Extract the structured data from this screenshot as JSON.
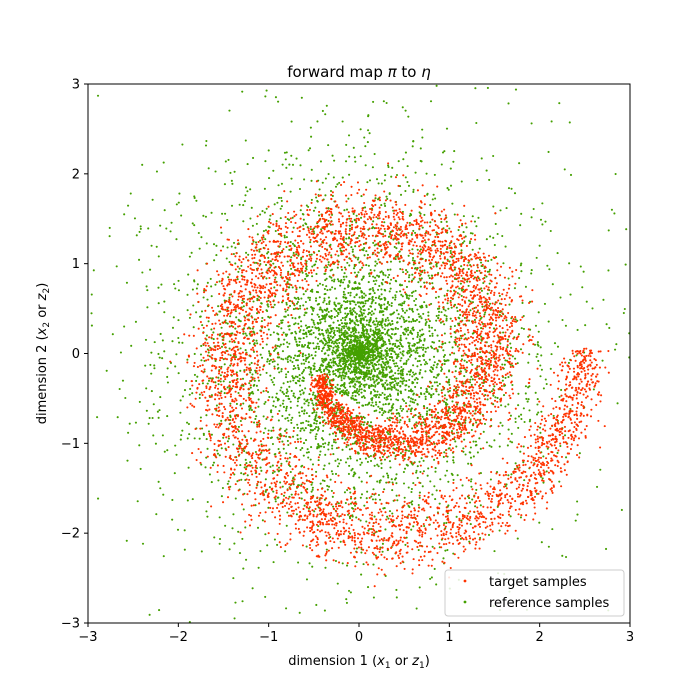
{
  "chart_data": {
    "type": "scatter",
    "title": "forward map π to η",
    "title_parts": {
      "pre": "forward map ",
      "pi": "π",
      "mid": " to ",
      "eta": "η"
    },
    "xlabel": "dimension 1 (x₁ or z₁)",
    "ylabel": "dimension 2 (x₂ or z₂)",
    "xlabel_parts": {
      "pre": "dimension 1 (",
      "v1": "x",
      "s1": "1",
      "or": " or ",
      "v2": "z",
      "s2": "1",
      "post": ")"
    },
    "ylabel_parts": {
      "pre": "dimension 2 (",
      "v1": "x",
      "s1": "2",
      "or": " or ",
      "v2": "z",
      "s2": "2",
      "post": ")"
    },
    "xlim": [
      -3,
      3
    ],
    "ylim": [
      -3,
      3
    ],
    "xticks": [
      -3,
      -2,
      -1,
      0,
      1,
      2,
      3
    ],
    "yticks": [
      -3,
      -2,
      -1,
      0,
      1,
      2,
      3
    ],
    "xtick_labels": [
      "−3",
      "−2",
      "−1",
      "0",
      "1",
      "2",
      "3"
    ],
    "ytick_labels": [
      "−3",
      "−2",
      "−1",
      "0",
      "1",
      "2",
      "3"
    ],
    "grid": false,
    "legend_position": "lower right",
    "series": [
      {
        "name": "target samples",
        "color": "#ff3300",
        "distribution": "spiral band: radius grows from about 0.8 to 2.4 over one and a half turns, from (0.2, -0.7) through (1.2, 0) to (0.2, 1.5), (-1.9, 0), (0, -2.3) and out to (2.7, -0.7)",
        "points": [
          [
            0.2,
            -0.72
          ],
          [
            0.55,
            -0.62
          ],
          [
            0.85,
            -0.4
          ],
          [
            1.05,
            -0.1
          ],
          [
            1.15,
            0.2
          ],
          [
            1.1,
            0.55
          ],
          [
            0.95,
            0.95
          ],
          [
            0.7,
            1.25
          ],
          [
            0.35,
            1.45
          ],
          [
            0.0,
            1.55
          ],
          [
            -0.4,
            1.5
          ],
          [
            -0.8,
            1.35
          ],
          [
            -1.15,
            1.1
          ],
          [
            -1.5,
            0.75
          ],
          [
            -1.75,
            0.35
          ],
          [
            -1.9,
            -0.1
          ],
          [
            -1.9,
            -0.6
          ],
          [
            -1.75,
            -1.1
          ],
          [
            -1.45,
            -1.6
          ],
          [
            -1.0,
            -2.0
          ],
          [
            -0.45,
            -2.25
          ],
          [
            0.1,
            -2.35
          ],
          [
            0.7,
            -2.3
          ],
          [
            1.3,
            -2.1
          ],
          [
            1.85,
            -1.8
          ],
          [
            2.3,
            -1.35
          ],
          [
            2.65,
            -0.75
          ],
          [
            -0.3,
            -0.3
          ],
          [
            0.0,
            -0.6
          ],
          [
            0.4,
            -0.7
          ]
        ]
      },
      {
        "name": "reference samples",
        "color": "#44a000",
        "distribution": "diffuse cloud centred near the origin, most points within a radius of about 2.5, with a sparse white streak running from (-0.6, -0.3) to (0.9, -1.1)",
        "points": [
          [
            0.0,
            0.0
          ],
          [
            -0.5,
            0.5
          ],
          [
            0.4,
            0.6
          ],
          [
            -0.3,
            -0.6
          ],
          [
            0.5,
            -0.3
          ],
          [
            -1.2,
            0.2
          ],
          [
            1.4,
            0.3
          ],
          [
            0.2,
            1.0
          ],
          [
            -0.8,
            -1.2
          ],
          [
            0.9,
            -1.4
          ],
          [
            -1.8,
            1.7
          ],
          [
            2.0,
            1.2
          ],
          [
            -2.2,
            -1.5
          ],
          [
            1.5,
            -2.2
          ],
          [
            0.1,
            -2.6
          ],
          [
            -2.6,
            0.3
          ],
          [
            2.6,
            -0.4
          ],
          [
            -0.4,
            2.7
          ],
          [
            2.8,
            1.6
          ],
          [
            -2.4,
            2.1
          ]
        ]
      }
    ]
  }
}
